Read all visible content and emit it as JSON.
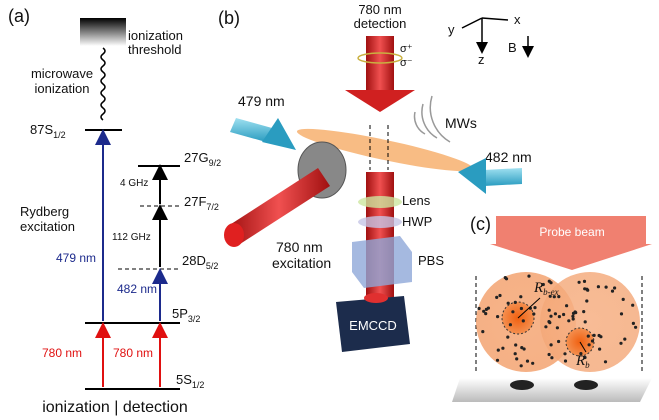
{
  "panel_a": {
    "label": "(a)",
    "threshold": [
      "ionization",
      "threshold"
    ],
    "microwave": [
      "microwave",
      "ionization"
    ],
    "levels": [
      {
        "name": "87S",
        "sub": "1/2"
      },
      {
        "name": "27G",
        "sub": "9/2"
      },
      {
        "name": "27F",
        "sub": "7/2"
      },
      {
        "name": "28D",
        "sub": "5/2"
      },
      {
        "name": "5P",
        "sub": "3/2"
      },
      {
        "name": "5S",
        "sub": "1/2"
      }
    ],
    "transitions": [
      "4 GHz",
      "112 GHz",
      "479 nm",
      "482 nm",
      "780 nm",
      "780 nm"
    ],
    "rydberg": [
      "Rydberg",
      "excitation"
    ],
    "footer": "ionization | detection"
  },
  "panel_b": {
    "label": "(b)",
    "detection": [
      "780 nm",
      "detection"
    ],
    "polarization": [
      "σ⁺",
      "σ⁻"
    ],
    "axes": [
      "y",
      "x",
      "z",
      "B"
    ],
    "beam_479": "479 nm",
    "mws": "MWs",
    "beam_482": "482 nm",
    "excitation": [
      "780 nm",
      "excitation"
    ],
    "optics": [
      "Lens",
      "HWP",
      "PBS"
    ],
    "camera": "EMCCD"
  },
  "panel_c": {
    "label": "(c)",
    "probe": "Probe beam",
    "radii": [
      {
        "symbol": "R",
        "sub": "b-ex"
      },
      {
        "symbol": "R",
        "sub": "b"
      }
    ]
  }
}
